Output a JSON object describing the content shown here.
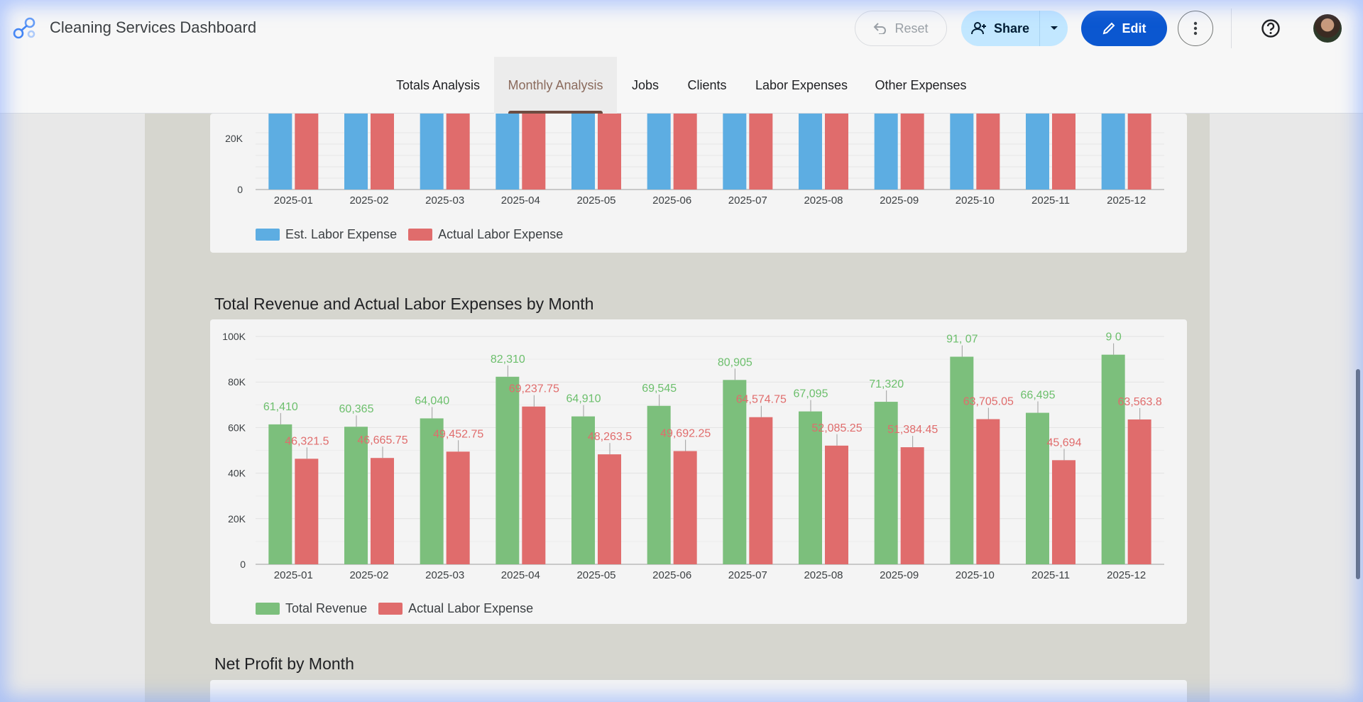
{
  "app": {
    "title": "Cleaning Services Dashboard"
  },
  "toolbar": {
    "reset_label": "Reset",
    "share_label": "Share",
    "edit_label": "Edit"
  },
  "tabs": [
    {
      "label": "Totals Analysis",
      "active": false
    },
    {
      "label": "Monthly Analysis",
      "active": true
    },
    {
      "label": "Jobs",
      "active": false
    },
    {
      "label": "Clients",
      "active": false
    },
    {
      "label": "Labor Expenses",
      "active": false
    },
    {
      "label": "Other Expenses",
      "active": false
    }
  ],
  "colors": {
    "blue": "#5dade2",
    "red": "#e06c6c",
    "green": "#7cbf7c",
    "green_label": "#6cbf6c",
    "red_label": "#e06c6c"
  },
  "sections": {
    "revenue_title": "Total Revenue and Actual Labor Expenses by Month",
    "net_profit_title": "Net Profit by Month"
  },
  "chart_data": [
    {
      "type": "bar",
      "categories": [
        "2025-01",
        "2025-02",
        "2025-03",
        "2025-04",
        "2025-05",
        "2025-06",
        "2025-07",
        "2025-08",
        "2025-09",
        "2025-10",
        "2025-11",
        "2025-12"
      ],
      "series": [
        {
          "name": "Est. Labor Expense",
          "color": "#5dade2"
        },
        {
          "name": "Actual Labor Expense",
          "color": "#e06c6c"
        }
      ],
      "y_ticks_visible": [
        "20K",
        "0"
      ],
      "partial": true
    },
    {
      "type": "bar",
      "title": "Total Revenue and Actual Labor Expenses by Month",
      "categories": [
        "2025-01",
        "2025-02",
        "2025-03",
        "2025-04",
        "2025-05",
        "2025-06",
        "2025-07",
        "2025-08",
        "2025-09",
        "2025-10",
        "2025-11",
        "2025-12"
      ],
      "series": [
        {
          "name": "Total Revenue",
          "color": "#7cbf7c",
          "values": [
            61410,
            60365,
            64040,
            82310,
            64910,
            69545,
            80905,
            67095,
            71320,
            91107,
            66495,
            92000
          ],
          "labels": [
            "61,410",
            "60,365",
            "64,040",
            "82,310",
            "64,910",
            "69,545",
            "80,905",
            "67,095",
            "71,320",
            "91,    07",
            "66,495",
            "9    0"
          ]
        },
        {
          "name": "Actual Labor Expense",
          "color": "#e06c6c",
          "values": [
            46321.5,
            46665.75,
            49452.75,
            69237.75,
            48263.5,
            49692.25,
            64574.75,
            52085.25,
            51384.45,
            63705.05,
            45694,
            63563.8
          ],
          "labels": [
            "46,321.5",
            "46,665.75",
            "49,452.75",
            "69,237.75",
            "48,263.5",
            "49,692.25",
            "64,574.75",
            "52,085.25",
            "51,384.45",
            "63,705.05",
            "45,694",
            "63,563.8"
          ]
        }
      ],
      "y_ticks": [
        "0",
        "20K",
        "40K",
        "60K",
        "80K",
        "100K"
      ],
      "ylim": [
        0,
        100000
      ],
      "legend": "bottom-left"
    }
  ]
}
